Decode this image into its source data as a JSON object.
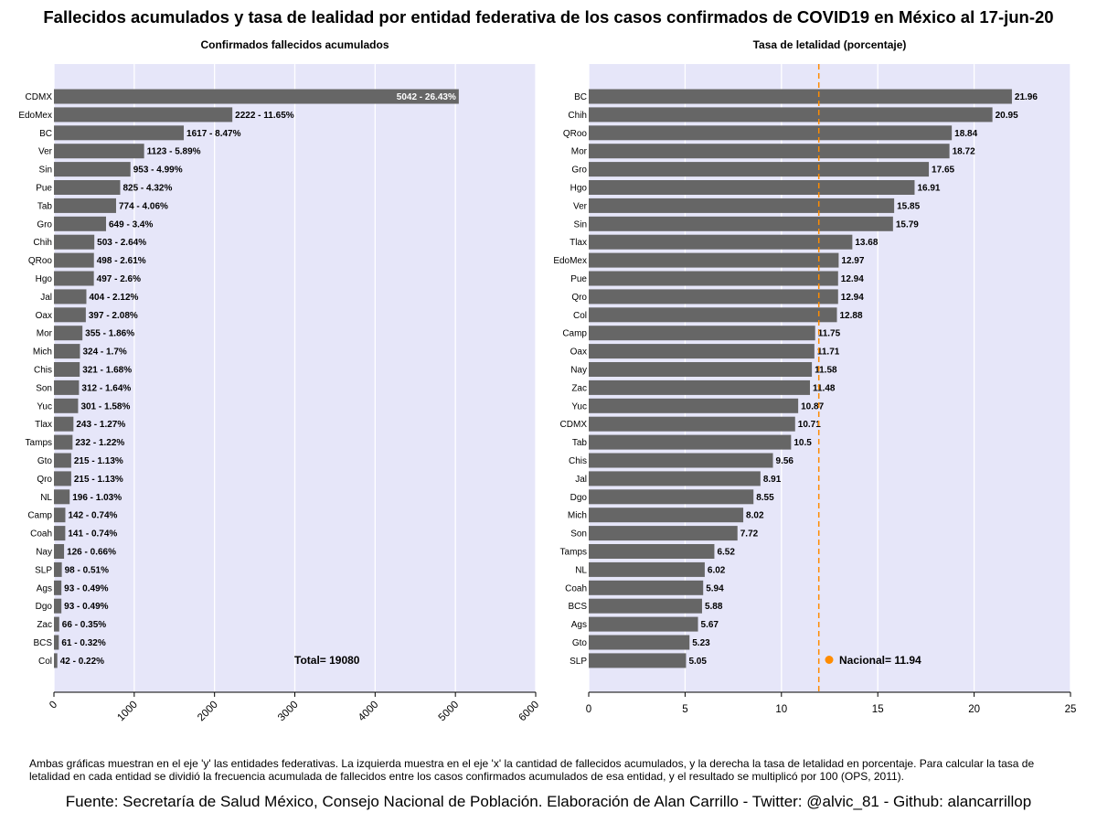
{
  "title": "Fallecidos acumulados y tasa de lealidad por entidad federativa de los casos confirmados de COVID19 en México al 17-jun-20",
  "footnote": "Ambas gráficas muestran en el eje 'y' las entidades federativas. La izquierda muestra en el eje 'x' la cantidad de fallecidos acumulados, y la derecha la tasa de letalidad en porcentaje. Para calcular la tasa de letalidad en cada entidad se dividió la frecuencia acumulada de fallecidos entre los casos confirmados acumulados de esa entidad, y el resultado se multiplicó por 100 (OPS, 2011).",
  "source": "Fuente: Secretaría de Salud México, Consejo Nacional de Población. Elaboración de Alan Carrillo - Twitter: @alvic_81 - Github: alancarrillop",
  "colors": {
    "panel_bg": "#e6e6f9",
    "bar": "#666666",
    "grid": "#ffffff",
    "national": "#ff8c00"
  },
  "chart_data": [
    {
      "type": "bar",
      "orientation": "horizontal",
      "title": "Confirmados fallecidos acumulados",
      "xlim": [
        0,
        6000
      ],
      "xticks": [
        "0",
        "1000",
        "2000",
        "3000",
        "4000",
        "5000",
        "6000"
      ],
      "categories": [
        "CDMX",
        "EdoMex",
        "BC",
        "Ver",
        "Sin",
        "Pue",
        "Tab",
        "Gro",
        "Chih",
        "QRoo",
        "Hgo",
        "Jal",
        "Oax",
        "Mor",
        "Mich",
        "Chis",
        "Son",
        "Yuc",
        "Tlax",
        "Tamps",
        "Gto",
        "Qro",
        "NL",
        "Camp",
        "Coah",
        "Nay",
        "SLP",
        "Ags",
        "Dgo",
        "Zac",
        "BCS",
        "Col"
      ],
      "values": [
        5042,
        2222,
        1617,
        1123,
        953,
        825,
        774,
        649,
        503,
        498,
        497,
        404,
        397,
        355,
        324,
        321,
        312,
        301,
        243,
        232,
        215,
        215,
        196,
        142,
        141,
        126,
        98,
        93,
        93,
        66,
        61,
        42
      ],
      "labels": [
        "5042 - 26.43%",
        "2222 - 11.65%",
        "1617 - 8.47%",
        "1123 - 5.89%",
        "953 - 4.99%",
        "825 - 4.32%",
        "774 - 4.06%",
        "649 - 3.4%",
        "503 - 2.64%",
        "498 - 2.61%",
        "497 - 2.6%",
        "404 - 2.12%",
        "397 - 2.08%",
        "355 - 1.86%",
        "324 - 1.7%",
        "321 - 1.68%",
        "312 - 1.64%",
        "301 - 1.58%",
        "243 - 1.27%",
        "232 - 1.22%",
        "215 - 1.13%",
        "215 - 1.13%",
        "196 - 1.03%",
        "142 - 0.74%",
        "141 - 0.74%",
        "126 - 0.66%",
        "98 - 0.51%",
        "93 - 0.49%",
        "93 - 0.49%",
        "66 - 0.35%",
        "61 - 0.32%",
        "42 - 0.22%"
      ],
      "annotation": "Total= 19080"
    },
    {
      "type": "bar",
      "orientation": "horizontal",
      "title": "Tasa de letalidad (porcentaje)",
      "xlim": [
        0,
        25
      ],
      "xticks": [
        "0",
        "5",
        "10",
        "15",
        "20",
        "25"
      ],
      "categories": [
        "BC",
        "Chih",
        "QRoo",
        "Mor",
        "Gro",
        "Hgo",
        "Ver",
        "Sin",
        "Tlax",
        "EdoMex",
        "Pue",
        "Qro",
        "Col",
        "Camp",
        "Oax",
        "Nay",
        "Zac",
        "Yuc",
        "CDMX",
        "Tab",
        "Chis",
        "Jal",
        "Dgo",
        "Mich",
        "Son",
        "Tamps",
        "NL",
        "Coah",
        "BCS",
        "Ags",
        "Gto",
        "SLP"
      ],
      "values": [
        21.96,
        20.95,
        18.84,
        18.72,
        17.65,
        16.91,
        15.85,
        15.79,
        13.68,
        12.97,
        12.94,
        12.94,
        12.88,
        11.75,
        11.71,
        11.58,
        11.48,
        10.87,
        10.71,
        10.5,
        9.56,
        8.91,
        8.55,
        8.02,
        7.72,
        6.52,
        6.02,
        5.94,
        5.88,
        5.67,
        5.23,
        5.05
      ],
      "labels": [
        "21.96",
        "20.95",
        "18.84",
        "18.72",
        "17.65",
        "16.91",
        "15.85",
        "15.79",
        "13.68",
        "12.97",
        "12.94",
        "12.94",
        "12.88",
        "11.75",
        "11.71",
        "11.58",
        "11.48",
        "10.87",
        "10.71",
        "10.5",
        "9.56",
        "8.91",
        "8.55",
        "8.02",
        "7.72",
        "6.52",
        "6.02",
        "5.94",
        "5.88",
        "5.67",
        "5.23",
        "5.05"
      ],
      "reference_line": {
        "value": 11.94,
        "style": "dashed"
      },
      "annotation": "Nacional= 11.94"
    }
  ]
}
